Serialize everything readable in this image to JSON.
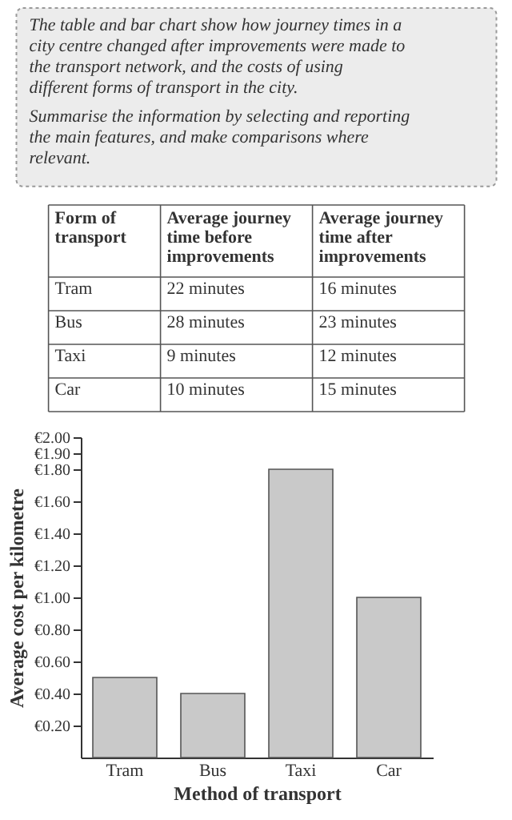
{
  "chart_data": [
    {
      "type": "other",
      "annotations": [
        "The table and bar chart show how journey times in a city centre changed after improvements were made to the transport network, and the costs of using different forms of transport in the city.",
        "Summarise the information by selecting and reporting the main features, and make comparisons where relevant."
      ]
    },
    {
      "type": "other",
      "annotations": [
        "Form of transport",
        "Average journey time before improvements",
        "Average journey time after improvements",
        "Tram",
        "22 minutes",
        "16 minutes",
        "Bus",
        "28 minutes",
        "23 minutes",
        "Taxi",
        "9 minutes",
        "12 minutes",
        "Car",
        "10 minutes",
        "15 minutes"
      ]
    },
    {
      "type": "bar",
      "xlabel": "Method of transport",
      "ylabel": "Average cost per kilometre",
      "categories": [
        "Tram",
        "Bus",
        "Taxi",
        "Car"
      ],
      "values": [
        0.5,
        0.4,
        1.8,
        1.0
      ],
      "color": "#c9c9c9",
      "ylim": [
        0,
        2
      ],
      "yticks": [
        {
          "value": 0.2,
          "label": "€0.20"
        },
        {
          "value": 0.4,
          "label": "€0.40"
        },
        {
          "value": 0.6,
          "label": "€0.60"
        },
        {
          "value": 0.8,
          "label": "€0.80"
        },
        {
          "value": 1.0,
          "label": "€1.00"
        },
        {
          "value": 1.2,
          "label": "€1.20"
        },
        {
          "value": 1.4,
          "label": "€1.40"
        },
        {
          "value": 1.6,
          "label": "€1.60"
        },
        {
          "value": 1.8,
          "label": "€1.80"
        },
        {
          "value": 1.9,
          "label": "€1.90"
        },
        {
          "value": 2.0,
          "label": "€2.00"
        }
      ],
      "grid": false
    }
  ]
}
